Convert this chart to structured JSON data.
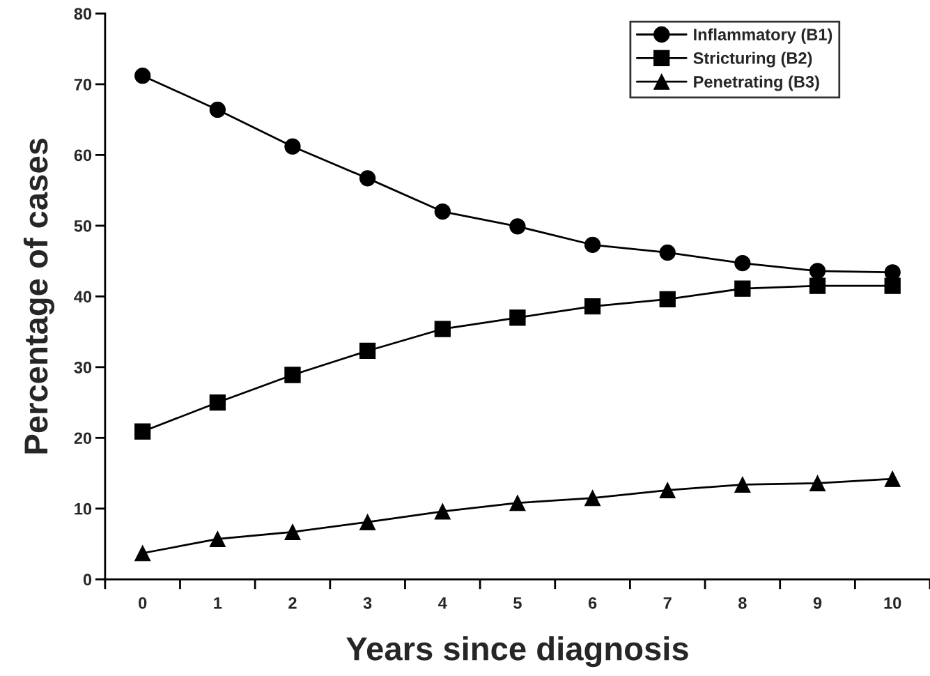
{
  "chart_data": {
    "type": "line",
    "xlabel": "Years since diagnosis",
    "ylabel": "Percentage of cases",
    "x": [
      0,
      1,
      2,
      3,
      4,
      5,
      6,
      7,
      8,
      9,
      10
    ],
    "series": [
      {
        "name": "Inflammatory (B1)",
        "color": "#000000",
        "marker": "circle",
        "values": [
          71.2,
          66.4,
          61.2,
          56.7,
          52.0,
          49.9,
          47.3,
          46.2,
          44.7,
          43.6,
          43.4
        ]
      },
      {
        "name": "Stricturing (B2)",
        "color": "#000000",
        "marker": "square",
        "values": [
          20.9,
          25.0,
          28.9,
          32.3,
          35.4,
          37.0,
          38.6,
          39.6,
          41.1,
          41.5,
          41.5
        ]
      },
      {
        "name": "Penetrating (B3)",
        "color": "#000000",
        "marker": "triangle",
        "values": [
          3.7,
          5.7,
          6.7,
          8.1,
          9.6,
          10.8,
          11.5,
          12.6,
          13.4,
          13.6,
          14.2
        ]
      }
    ],
    "xlim": [
      -0.5,
      10.5
    ],
    "xticks": [
      {
        "value": -0.5,
        "label": null
      },
      0,
      {
        "value": 0.5,
        "label": null
      },
      1,
      {
        "value": 1.5,
        "label": null
      },
      2,
      {
        "value": 2.5,
        "label": null
      },
      3,
      {
        "value": 3.5,
        "label": null
      },
      4,
      {
        "value": 4.5,
        "label": null
      },
      5,
      {
        "value": 5.5,
        "label": null
      },
      6,
      {
        "value": 6.5,
        "label": null
      },
      7,
      {
        "value": 7.5,
        "label": null
      },
      8,
      {
        "value": 8.5,
        "label": null
      },
      9,
      {
        "value": 9.5,
        "label": null
      },
      10,
      {
        "value": 10.5,
        "label": null
      }
    ],
    "ylim": [
      0,
      80
    ],
    "yticks": [
      0,
      10,
      20,
      30,
      40,
      50,
      60,
      70,
      80
    ],
    "grid": false,
    "legend": "top right",
    "line_style": "solid"
  }
}
